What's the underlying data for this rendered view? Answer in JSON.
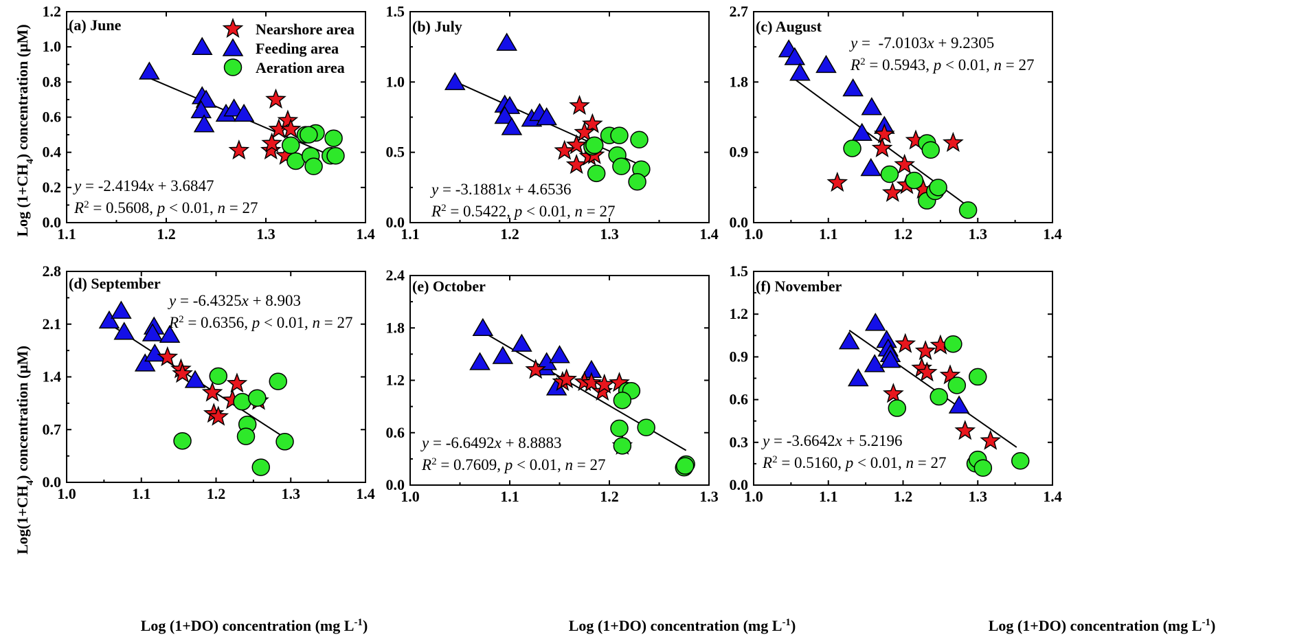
{
  "colors": {
    "nearshore": "#e8161d",
    "feeding": "#1410e8",
    "aeration": "#2ee82a",
    "outline": "#000000"
  },
  "legend": {
    "items": [
      {
        "key": "nearshore",
        "label": "Nearshore area",
        "marker": "star"
      },
      {
        "key": "feeding",
        "label": "Feeding area",
        "marker": "triangle"
      },
      {
        "key": "aeration",
        "label": "Aeration area",
        "marker": "circle"
      }
    ]
  },
  "axis_labels": {
    "y_top": "Log (1+CH4) concentration (μM)",
    "y_bottom": "Log(1+CH4) concentration (μM)",
    "x": "Log (1+DO) concentration (mg L-1)"
  },
  "chart_data": [
    {
      "type": "scatter",
      "panel": "(a) June",
      "xlim": [
        1.1,
        1.4
      ],
      "ylim": [
        0.0,
        1.2
      ],
      "xticks": [
        "1.1",
        "1.2",
        "1.3",
        "1.4"
      ],
      "yticks": [
        "0.0",
        "0.2",
        "0.4",
        "0.6",
        "0.8",
        "1.0",
        "1.2"
      ],
      "fit": {
        "slope": -2.4194,
        "intercept": 3.6847,
        "x_range": [
          1.183,
          1.368
        ]
      },
      "equation": "y = -2.4194x + 3.6847",
      "stats": "R2 = 0.5608, p < 0.01, n = 27",
      "series": [
        {
          "key": "feeding",
          "points": [
            [
              1.183,
              0.86
            ],
            [
              1.236,
              1.0
            ],
            [
              1.236,
              0.72
            ],
            [
              1.24,
              0.7
            ],
            [
              1.235,
              0.64
            ],
            [
              1.238,
              0.56
            ],
            [
              1.26,
              0.62
            ],
            [
              1.268,
              0.65
            ],
            [
              1.278,
              0.62
            ]
          ]
        },
        {
          "key": "nearshore",
          "points": [
            [
              1.31,
              0.7
            ],
            [
              1.273,
              0.41
            ],
            [
              1.305,
              0.41
            ],
            [
              1.306,
              0.45
            ],
            [
              1.313,
              0.53
            ],
            [
              1.322,
              0.58
            ],
            [
              1.325,
              0.53
            ],
            [
              1.32,
              0.38
            ]
          ]
        },
        {
          "key": "aeration",
          "points": [
            [
              1.325,
              0.44
            ],
            [
              1.33,
              0.35
            ],
            [
              1.34,
              0.5
            ],
            [
              1.345,
              0.38
            ],
            [
              1.348,
              0.32
            ],
            [
              1.35,
              0.51
            ],
            [
              1.365,
              0.38
            ],
            [
              1.368,
              0.48
            ],
            [
              1.37,
              0.38
            ],
            [
              1.343,
              0.5
            ]
          ]
        }
      ]
    },
    {
      "type": "scatter",
      "panel": "(b) July",
      "xlim": [
        1.1,
        1.4
      ],
      "ylim": [
        0.0,
        1.5
      ],
      "xticks": [
        "1.1",
        "1.2",
        "1.3",
        "1.4"
      ],
      "yticks": [
        "0.0",
        "0.5",
        "1.0",
        "1.5"
      ],
      "fit": {
        "slope": -3.1881,
        "intercept": 4.6536,
        "x_range": [
          1.145,
          1.33
        ]
      },
      "equation": "y = -3.1881x + 4.6536",
      "stats": "R2 = 0.5422, p < 0.01, n = 27",
      "series": [
        {
          "key": "feeding",
          "points": [
            [
              1.145,
              1.0
            ],
            [
              1.197,
              1.28
            ],
            [
              1.195,
              0.84
            ],
            [
              1.2,
              0.83
            ],
            [
              1.195,
              0.76
            ],
            [
              1.202,
              0.68
            ],
            [
              1.222,
              0.74
            ],
            [
              1.23,
              0.78
            ],
            [
              1.237,
              0.75
            ]
          ]
        },
        {
          "key": "nearshore",
          "points": [
            [
              1.27,
              0.83
            ],
            [
              1.283,
              0.7
            ],
            [
              1.275,
              0.64
            ],
            [
              1.267,
              0.55
            ],
            [
              1.255,
              0.51
            ],
            [
              1.267,
              0.41
            ],
            [
              1.28,
              0.47
            ],
            [
              1.285,
              0.48
            ]
          ]
        },
        {
          "key": "aeration",
          "points": [
            [
              1.283,
              0.54
            ],
            [
              1.287,
              0.35
            ],
            [
              1.3,
              0.62
            ],
            [
              1.31,
              0.62
            ],
            [
              1.308,
              0.48
            ],
            [
              1.312,
              0.4
            ],
            [
              1.33,
              0.59
            ],
            [
              1.332,
              0.38
            ],
            [
              1.328,
              0.29
            ],
            [
              1.285,
              0.55
            ]
          ]
        }
      ]
    },
    {
      "type": "scatter",
      "panel": "(c) August",
      "xlim": [
        1.0,
        1.4
      ],
      "ylim": [
        0.0,
        2.7
      ],
      "xticks": [
        "1.0",
        "1.1",
        "1.2",
        "1.3",
        "1.4"
      ],
      "yticks": [
        "0.0",
        "0.9",
        "1.8",
        "2.7"
      ],
      "fit": {
        "slope": -7.0103,
        "intercept": 9.2305,
        "x_range": [
          1.052,
          1.287
        ]
      },
      "equation": "y =  -7.0103x + 9.2305",
      "stats": "R2 = 0.5943, p < 0.01, n = 27",
      "series": [
        {
          "key": "feeding",
          "points": [
            [
              1.047,
              2.22
            ],
            [
              1.055,
              2.12
            ],
            [
              1.062,
              1.92
            ],
            [
              1.097,
              2.02
            ],
            [
              1.133,
              1.72
            ],
            [
              1.158,
              1.48
            ],
            [
              1.145,
              1.15
            ],
            [
              1.175,
              1.24
            ],
            [
              1.157,
              0.7
            ]
          ]
        },
        {
          "key": "nearshore",
          "points": [
            [
              1.175,
              1.13
            ],
            [
              1.172,
              0.95
            ],
            [
              1.217,
              1.05
            ],
            [
              1.267,
              1.02
            ],
            [
              1.112,
              0.51
            ],
            [
              1.202,
              0.74
            ],
            [
              1.205,
              0.48
            ],
            [
              1.186,
              0.38
            ],
            [
              1.227,
              0.42
            ]
          ]
        },
        {
          "key": "aeration",
          "points": [
            [
              1.132,
              0.95
            ],
            [
              1.182,
              0.62
            ],
            [
              1.215,
              0.54
            ],
            [
              1.232,
              1.02
            ],
            [
              1.237,
              0.93
            ],
            [
              1.232,
              0.28
            ],
            [
              1.243,
              0.4
            ],
            [
              1.247,
              0.45
            ],
            [
              1.287,
              0.16
            ]
          ]
        }
      ]
    },
    {
      "type": "scatter",
      "panel": "(d) September",
      "xlim": [
        1.0,
        1.4
      ],
      "ylim": [
        0.0,
        2.8
      ],
      "xticks": [
        "1.0",
        "1.1",
        "1.2",
        "1.3",
        "1.4"
      ],
      "yticks": [
        "0.0",
        "0.7",
        "1.4",
        "2.1",
        "2.8"
      ],
      "fit": {
        "slope": -6.4325,
        "intercept": 8.903,
        "x_range": [
          1.058,
          1.292
        ]
      },
      "equation": "y = -6.4325x + 8.903",
      "stats": "R2 = 0.6356, p < 0.01, n = 27",
      "series": [
        {
          "key": "feeding",
          "points": [
            [
              1.057,
              2.15
            ],
            [
              1.073,
              2.28
            ],
            [
              1.077,
              2.0
            ],
            [
              1.117,
              2.07
            ],
            [
              1.115,
              1.98
            ],
            [
              1.138,
              1.96
            ],
            [
              1.105,
              1.58
            ],
            [
              1.118,
              1.71
            ],
            [
              1.172,
              1.36
            ]
          ]
        },
        {
          "key": "nearshore",
          "points": [
            [
              1.135,
              1.66
            ],
            [
              1.153,
              1.5
            ],
            [
              1.155,
              1.44
            ],
            [
              1.195,
              1.19
            ],
            [
              1.228,
              1.31
            ],
            [
              1.222,
              1.09
            ],
            [
              1.257,
              1.08
            ],
            [
              1.197,
              0.91
            ],
            [
              1.203,
              0.87
            ]
          ]
        },
        {
          "key": "aeration",
          "points": [
            [
              1.203,
              1.41
            ],
            [
              1.155,
              0.55
            ],
            [
              1.235,
              1.07
            ],
            [
              1.255,
              1.12
            ],
            [
              1.283,
              1.34
            ],
            [
              1.242,
              0.77
            ],
            [
              1.24,
              0.61
            ],
            [
              1.292,
              0.54
            ],
            [
              1.26,
              0.2
            ]
          ]
        }
      ]
    },
    {
      "type": "scatter",
      "panel": "(e) October",
      "xlim": [
        1.0,
        1.3
      ],
      "ylim": [
        0.0,
        2.4
      ],
      "xticks": [
        "1.0",
        "1.1",
        "1.2",
        "1.3"
      ],
      "yticks": [
        "0.0",
        "0.6",
        "1.2",
        "1.8",
        "2.4"
      ],
      "fit": {
        "slope": -6.6492,
        "intercept": 8.8883,
        "x_range": [
          1.073,
          1.277
        ]
      },
      "equation": "y = -6.6492x + 8.8883",
      "stats": "R2 = 0.7609, p < 0.01, n = 27",
      "series": [
        {
          "key": "feeding",
          "points": [
            [
              1.073,
              1.8
            ],
            [
              1.07,
              1.41
            ],
            [
              1.093,
              1.48
            ],
            [
              1.112,
              1.62
            ],
            [
              1.135,
              1.35
            ],
            [
              1.137,
              1.41
            ],
            [
              1.15,
              1.49
            ],
            [
              1.147,
              1.12
            ],
            [
              1.182,
              1.32
            ]
          ]
        },
        {
          "key": "nearshore",
          "points": [
            [
              1.126,
              1.32
            ],
            [
              1.153,
              1.18
            ],
            [
              1.157,
              1.21
            ],
            [
              1.175,
              1.18
            ],
            [
              1.182,
              1.17
            ],
            [
              1.193,
              1.07
            ],
            [
              1.195,
              1.15
            ],
            [
              1.21,
              1.17
            ],
            [
              1.213,
              0.45
            ]
          ]
        },
        {
          "key": "aeration",
          "points": [
            [
              1.218,
              1.08
            ],
            [
              1.222,
              1.08
            ],
            [
              1.213,
              0.97
            ],
            [
              1.21,
              0.65
            ],
            [
              1.237,
              0.66
            ],
            [
              1.213,
              0.45
            ],
            [
              1.275,
              0.2
            ],
            [
              1.277,
              0.24
            ],
            [
              1.276,
              0.22
            ]
          ]
        }
      ]
    },
    {
      "type": "scatter",
      "panel": "(f) November",
      "xlim": [
        1.0,
        1.4
      ],
      "ylim": [
        0.0,
        1.5
      ],
      "xticks": [
        "1.0",
        "1.1",
        "1.2",
        "1.3",
        "1.4"
      ],
      "yticks": [
        "0.0",
        "0.3",
        "0.6",
        "0.9",
        "1.2",
        "1.5"
      ],
      "fit": {
        "slope": -3.6642,
        "intercept": 5.2196,
        "x_range": [
          1.128,
          1.352
        ]
      },
      "equation": "y = -3.6642x + 5.2196",
      "stats": "R2 = 0.5160, p < 0.01, n = 27",
      "series": [
        {
          "key": "feeding",
          "points": [
            [
              1.128,
              1.01
            ],
            [
              1.163,
              1.14
            ],
            [
              1.178,
              1.02
            ],
            [
              1.18,
              0.96
            ],
            [
              1.162,
              0.85
            ],
            [
              1.183,
              0.92
            ],
            [
              1.14,
              0.75
            ],
            [
              1.183,
              0.88
            ],
            [
              1.275,
              0.56
            ]
          ]
        },
        {
          "key": "nearshore",
          "points": [
            [
              1.203,
              0.99
            ],
            [
              1.23,
              0.94
            ],
            [
              1.25,
              0.98
            ],
            [
              1.225,
              0.82
            ],
            [
              1.232,
              0.79
            ],
            [
              1.263,
              0.77
            ],
            [
              1.187,
              0.64
            ],
            [
              1.283,
              0.38
            ],
            [
              1.317,
              0.31
            ]
          ]
        },
        {
          "key": "aeration",
          "points": [
            [
              1.267,
              0.99
            ],
            [
              1.272,
              0.7
            ],
            [
              1.3,
              0.76
            ],
            [
              1.248,
              0.62
            ],
            [
              1.192,
              0.54
            ],
            [
              1.297,
              0.15
            ],
            [
              1.3,
              0.18
            ],
            [
              1.307,
              0.12
            ],
            [
              1.357,
              0.17
            ]
          ]
        }
      ]
    }
  ]
}
